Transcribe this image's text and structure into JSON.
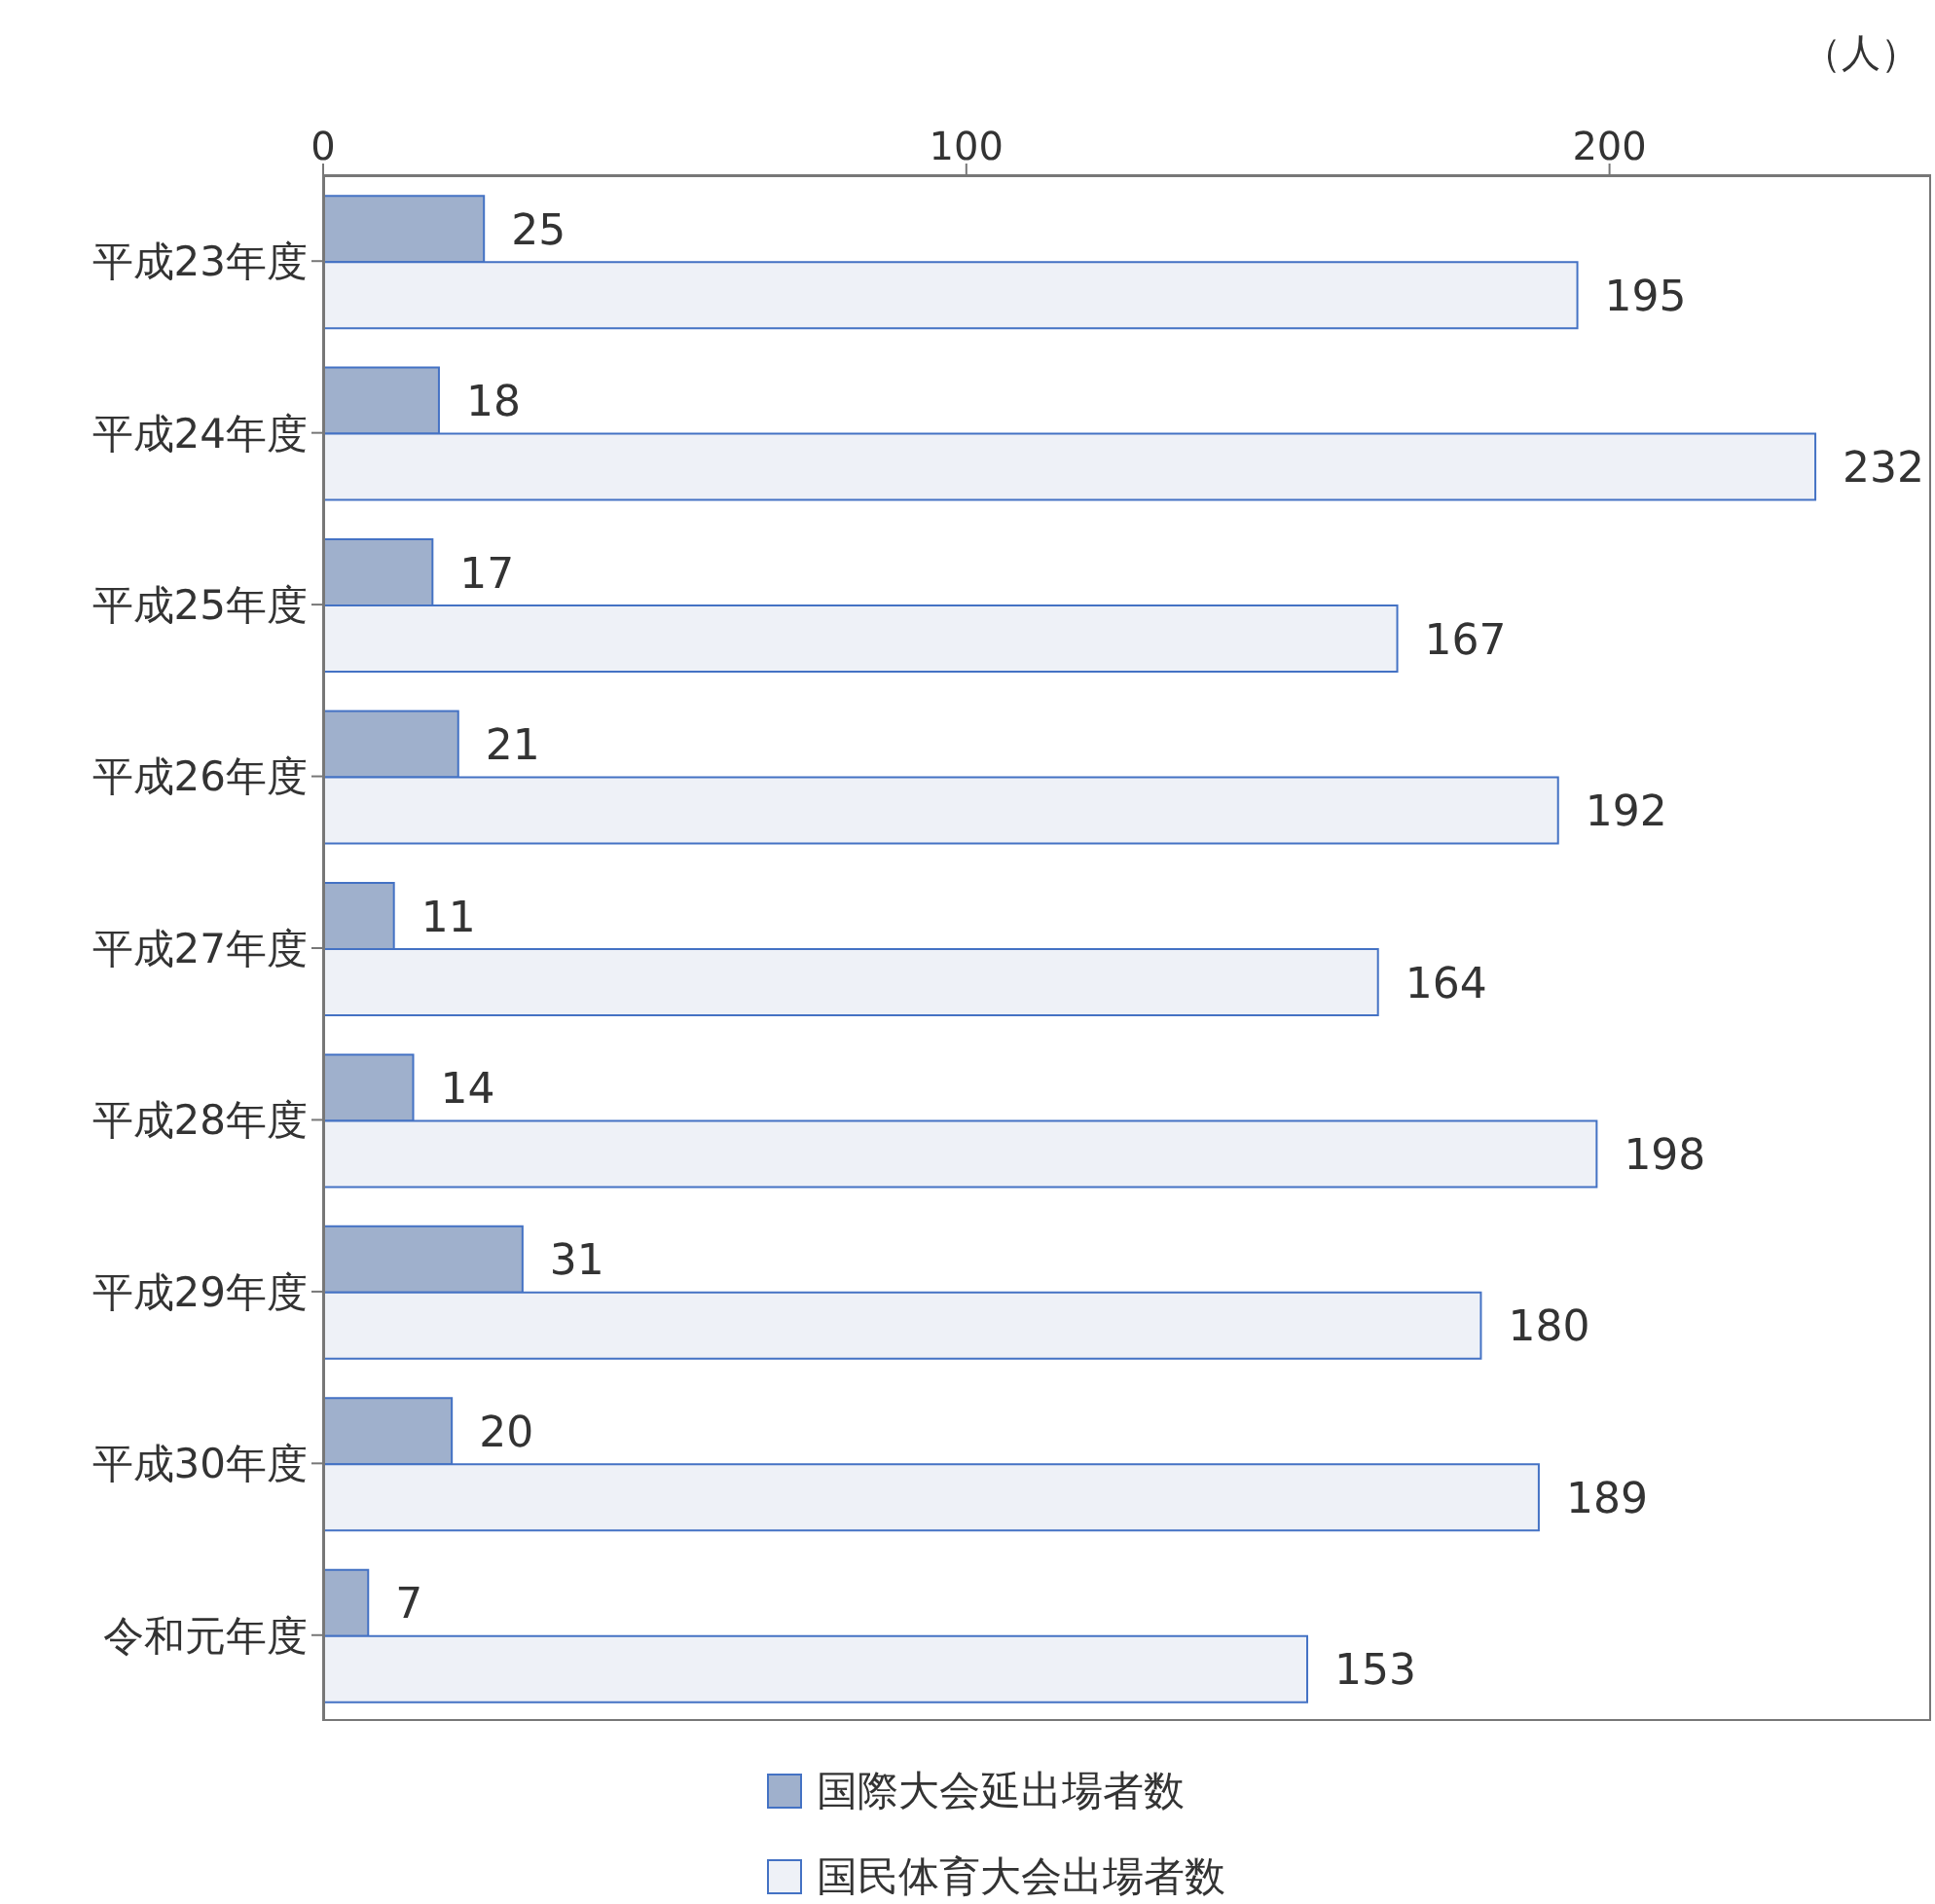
{
  "chart_data": {
    "type": "bar",
    "orientation": "horizontal",
    "xlabel": "（人）",
    "categories": [
      "平成23年度",
      "平成24年度",
      "平成25年度",
      "平成26年度",
      "平成27年度",
      "平成28年度",
      "平成29年度",
      "平成30年度",
      "令和元年度"
    ],
    "series": [
      {
        "name": "国際大会延出場者数",
        "color": "#9fb0cc",
        "values": [
          25,
          18,
          17,
          21,
          11,
          14,
          31,
          20,
          7
        ]
      },
      {
        "name": "国民体育大会出場者数",
        "color": "#eef1f7",
        "values": [
          195,
          232,
          167,
          192,
          164,
          198,
          180,
          189,
          153
        ]
      }
    ],
    "xlim": [
      0,
      250
    ],
    "xticks": [
      0,
      100,
      200
    ],
    "data_labels": true,
    "grid": false,
    "legend": "bottom"
  }
}
